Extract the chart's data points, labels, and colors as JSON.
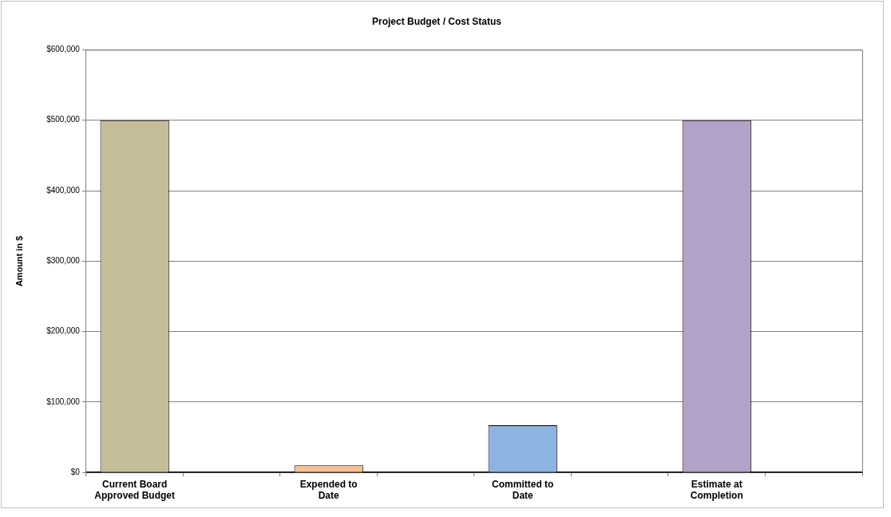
{
  "chart_data": {
    "type": "bar",
    "title": "Project Budget / Cost Status",
    "ylabel": "Amount in $",
    "categories": [
      "Current Board Approved Budget",
      null,
      "Expended to Date",
      null,
      "Committed to Date",
      null,
      "Estimate at Completion",
      null
    ],
    "values": [
      500000,
      null,
      10000,
      null,
      67000,
      null,
      500000,
      null
    ],
    "colors": [
      "#c4bd97",
      "#c4bd97",
      "#fac090",
      "#fac090",
      "#8db3e2",
      "#8db3e2",
      "#b3a2c7",
      "#b3a2c7"
    ],
    "ylim": [
      0,
      600000
    ],
    "yticks": [
      {
        "value": 0,
        "label": "$0"
      },
      {
        "value": 100000,
        "label": "$100,000"
      },
      {
        "value": 200000,
        "label": "$200,000"
      },
      {
        "value": 300000,
        "label": "$300,000"
      },
      {
        "value": 400000,
        "label": "$400,000"
      },
      {
        "value": 500000,
        "label": "$500,000"
      },
      {
        "value": 600000,
        "label": "$600,000"
      }
    ],
    "grid": "y",
    "legend": false
  }
}
